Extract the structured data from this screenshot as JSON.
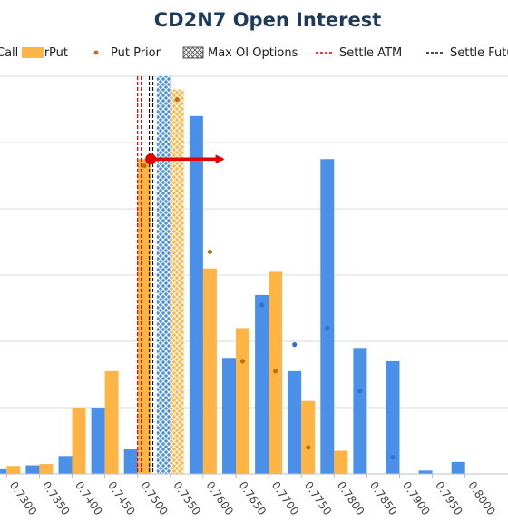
{
  "chart_data": {
    "type": "bar",
    "title": "CD2N7 Open Interest",
    "legend": [
      {
        "label": "Call Prior",
        "kind": "dot",
        "color": "#2f6fd6"
      },
      {
        "label": "Put",
        "kind": "swatch",
        "color": "#ffb545"
      },
      {
        "label": "Put Prior",
        "kind": "dot",
        "color": "#c07010"
      },
      {
        "label": "Max OI Options",
        "kind": "hatch",
        "color": "#555555"
      },
      {
        "label": "Settle ATM",
        "kind": "dash",
        "color": "#d00000"
      },
      {
        "label": "Settle Futures",
        "kind": "dash",
        "color": "#111111"
      }
    ],
    "categories": [
      "0.7300",
      "0.7350",
      "0.7400",
      "0.7450",
      "0.7500",
      "0.7550",
      "0.7600",
      "0.7650",
      "0.7700",
      "0.7750",
      "0.7800",
      "0.7850",
      "0.7900",
      "0.7950",
      "0.8000"
    ],
    "ylim": [
      0,
      600
    ],
    "series": [
      {
        "name": "Call",
        "color": "#4a90e8",
        "values": [
          7,
          13,
          27,
          100,
          37,
          600,
          540,
          175,
          270,
          155,
          475,
          190,
          170,
          5,
          18
        ]
      },
      {
        "name": "Put",
        "color": "#ffb545",
        "values": [
          12,
          15,
          100,
          155,
          475,
          580,
          310,
          220,
          305,
          110,
          35,
          0,
          0,
          0,
          0
        ]
      },
      {
        "name": "Call Prior",
        "color": "#2f6fd6",
        "values": [
          null,
          null,
          null,
          null,
          null,
          null,
          null,
          null,
          255,
          195,
          220,
          125,
          25,
          null,
          null
        ]
      },
      {
        "name": "Put Prior",
        "color": "#c07010",
        "values": [
          null,
          null,
          null,
          null,
          465,
          565,
          335,
          170,
          155,
          40,
          null,
          null,
          null,
          null,
          null
        ]
      }
    ],
    "max_oi_category": "0.7550",
    "settle_atm": 0.75,
    "settle_futures": 0.7515,
    "annotation": {
      "type": "arrow",
      "from_x": 0.752,
      "to_x": 0.763,
      "y": 475,
      "color": "#e00000"
    },
    "grid": true
  }
}
